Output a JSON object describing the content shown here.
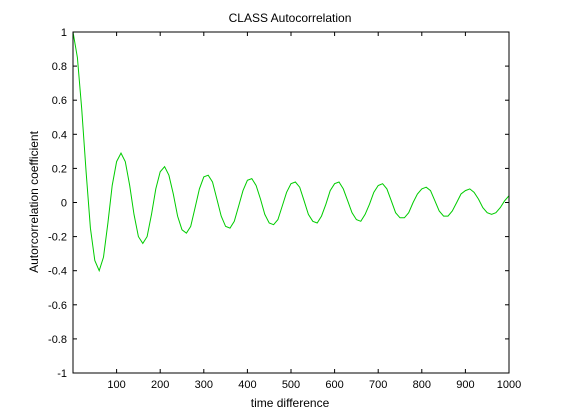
{
  "chart_data": {
    "type": "line",
    "title": "CLASS Autocorrelation",
    "xlabel": "time difference",
    "ylabel": "Autorcorrelation coefficient",
    "xlim": [
      0,
      1000
    ],
    "ylim": [
      -1,
      1
    ],
    "xticks": [
      100,
      200,
      300,
      400,
      500,
      600,
      700,
      800,
      900,
      1000
    ],
    "xtick_labels": [
      "100",
      "200",
      "300",
      "400",
      "500",
      "600",
      "700",
      "800",
      "900",
      "1000"
    ],
    "yticks": [
      -1,
      -0.8,
      -0.6,
      -0.4,
      -0.2,
      0,
      0.2,
      0.4,
      0.6,
      0.8,
      1
    ],
    "ytick_labels": [
      "-1",
      "-0.8",
      "-0.6",
      "-0.4",
      "-0.2",
      "0",
      "0.2",
      "0.4",
      "0.6",
      "0.8",
      "1"
    ],
    "grid": false,
    "series": [
      {
        "color": "#00cc00",
        "points": [
          [
            0,
            1.0
          ],
          [
            10,
            0.85
          ],
          [
            20,
            0.55
          ],
          [
            30,
            0.18
          ],
          [
            40,
            -0.15
          ],
          [
            50,
            -0.34
          ],
          [
            60,
            -0.4
          ],
          [
            70,
            -0.32
          ],
          [
            80,
            -0.12
          ],
          [
            90,
            0.1
          ],
          [
            100,
            0.24
          ],
          [
            110,
            0.29
          ],
          [
            120,
            0.24
          ],
          [
            130,
            0.1
          ],
          [
            140,
            -0.07
          ],
          [
            150,
            -0.2
          ],
          [
            160,
            -0.24
          ],
          [
            170,
            -0.2
          ],
          [
            180,
            -0.07
          ],
          [
            190,
            0.08
          ],
          [
            200,
            0.18
          ],
          [
            210,
            0.21
          ],
          [
            220,
            0.16
          ],
          [
            230,
            0.05
          ],
          [
            240,
            -0.08
          ],
          [
            250,
            -0.16
          ],
          [
            260,
            -0.18
          ],
          [
            270,
            -0.14
          ],
          [
            280,
            -0.03
          ],
          [
            290,
            0.08
          ],
          [
            300,
            0.15
          ],
          [
            310,
            0.16
          ],
          [
            320,
            0.12
          ],
          [
            330,
            0.02
          ],
          [
            340,
            -0.08
          ],
          [
            350,
            -0.14
          ],
          [
            360,
            -0.15
          ],
          [
            370,
            -0.11
          ],
          [
            380,
            -0.02
          ],
          [
            390,
            0.07
          ],
          [
            400,
            0.13
          ],
          [
            410,
            0.14
          ],
          [
            420,
            0.1
          ],
          [
            430,
            0.02
          ],
          [
            440,
            -0.07
          ],
          [
            450,
            -0.12
          ],
          [
            460,
            -0.13
          ],
          [
            470,
            -0.1
          ],
          [
            480,
            -0.02
          ],
          [
            490,
            0.06
          ],
          [
            500,
            0.11
          ],
          [
            510,
            0.12
          ],
          [
            520,
            0.09
          ],
          [
            530,
            0.01
          ],
          [
            540,
            -0.07
          ],
          [
            550,
            -0.11
          ],
          [
            560,
            -0.12
          ],
          [
            570,
            -0.08
          ],
          [
            580,
            -0.01
          ],
          [
            590,
            0.07
          ],
          [
            600,
            0.11
          ],
          [
            610,
            0.12
          ],
          [
            620,
            0.08
          ],
          [
            630,
            0.01
          ],
          [
            640,
            -0.06
          ],
          [
            650,
            -0.1
          ],
          [
            660,
            -0.11
          ],
          [
            670,
            -0.07
          ],
          [
            680,
            -0.01
          ],
          [
            690,
            0.06
          ],
          [
            700,
            0.1
          ],
          [
            710,
            0.11
          ],
          [
            720,
            0.08
          ],
          [
            730,
            0.01
          ],
          [
            740,
            -0.06
          ],
          [
            750,
            -0.09
          ],
          [
            760,
            -0.09
          ],
          [
            770,
            -0.06
          ],
          [
            780,
            0.0
          ],
          [
            790,
            0.05
          ],
          [
            800,
            0.08
          ],
          [
            810,
            0.09
          ],
          [
            820,
            0.07
          ],
          [
            830,
            0.01
          ],
          [
            840,
            -0.05
          ],
          [
            850,
            -0.08
          ],
          [
            860,
            -0.08
          ],
          [
            870,
            -0.05
          ],
          [
            880,
            0.0
          ],
          [
            890,
            0.05
          ],
          [
            900,
            0.07
          ],
          [
            910,
            0.08
          ],
          [
            920,
            0.06
          ],
          [
            930,
            0.02
          ],
          [
            940,
            -0.03
          ],
          [
            950,
            -0.06
          ],
          [
            960,
            -0.07
          ],
          [
            970,
            -0.06
          ],
          [
            980,
            -0.03
          ],
          [
            990,
            0.01
          ],
          [
            1000,
            0.04
          ]
        ]
      }
    ]
  }
}
